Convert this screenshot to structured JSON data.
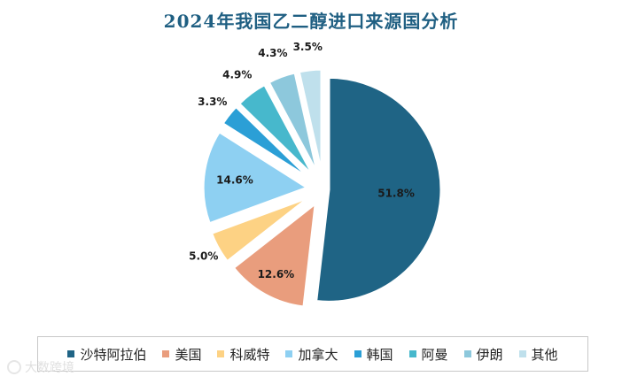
{
  "chart_data": {
    "type": "pie",
    "title": "2024年我国乙二醇进口来源国分析",
    "categories": [
      "沙特阿拉伯",
      "美国",
      "科威特",
      "加拿大",
      "韩国",
      "阿曼",
      "伊朗",
      "其他"
    ],
    "values": [
      51.8,
      12.6,
      5.0,
      14.6,
      3.3,
      4.9,
      4.3,
      3.5
    ],
    "value_labels": [
      "51.8%",
      "12.6%",
      "5.0%",
      "14.6%",
      "3.3%",
      "4.9%",
      "4.3%",
      "3.5%"
    ],
    "colors": [
      "#1f6485",
      "#e99d7d",
      "#fdd284",
      "#8ed0f2",
      "#2b9fd6",
      "#47b8cc",
      "#8dc8dc",
      "#bfe0ec"
    ],
    "legend_position": "bottom"
  },
  "watermark": "大数跨境"
}
